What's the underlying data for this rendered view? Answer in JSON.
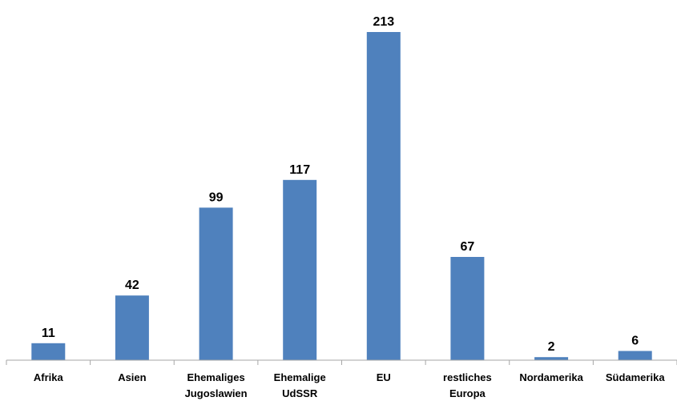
{
  "chart_data": {
    "type": "bar",
    "categories": [
      [
        "Afrika"
      ],
      [
        "Asien"
      ],
      [
        "Ehemaliges",
        "Jugoslawien"
      ],
      [
        "Ehemalige",
        "UdSSR"
      ],
      [
        "EU"
      ],
      [
        "restliches",
        "Europa"
      ],
      [
        "Nordamerika"
      ],
      [
        "Südamerika"
      ]
    ],
    "values": [
      11,
      42,
      99,
      117,
      213,
      67,
      2,
      6
    ],
    "value_labels": [
      "11",
      "42",
      "99",
      "117",
      "213",
      "67",
      "2",
      "6"
    ],
    "bar_color": "#4f81bd",
    "ylim": [
      0,
      213
    ],
    "grid": false,
    "legend": "none",
    "show_data_labels": true
  }
}
